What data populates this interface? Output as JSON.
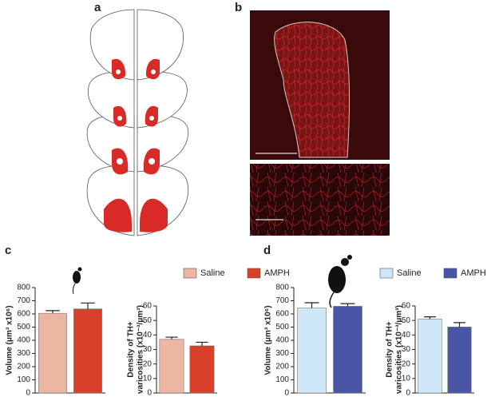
{
  "panels": [
    "a",
    "b",
    "c",
    "d"
  ],
  "legends": [
    [
      "Saline",
      "AMPH"
    ],
    [
      "Saline",
      "AMPH"
    ]
  ],
  "chart_data": [
    {
      "type": "bar",
      "ylabel": [
        "Volume (μm³ x10⁶)"
      ],
      "values": [
        605,
        638
      ],
      "errors": [
        20,
        45
      ],
      "colors": [
        "#ebb6a2",
        "#d8402a"
      ],
      "ylim": [
        0,
        800
      ],
      "yticks": [
        0,
        100,
        200,
        300,
        400,
        500,
        600,
        700,
        800
      ]
    },
    {
      "type": "bar",
      "ylabel": [
        "Density of TH+",
        "varicosities (x10⁻³/μm³)"
      ],
      "values": [
        37,
        32.5
      ],
      "errors": [
        1.5,
        2.5
      ],
      "colors": [
        "#ebb6a2",
        "#d8402a"
      ],
      "ylim": [
        0,
        60
      ],
      "yticks": [
        0,
        10,
        20,
        30,
        40,
        50,
        60
      ]
    },
    {
      "type": "bar",
      "ylabel": [
        "Volume (μm³ x10⁶)"
      ],
      "values": [
        645,
        658
      ],
      "errors": [
        40,
        20
      ],
      "colors": [
        "#cfe6f7",
        "#4a55a8"
      ],
      "ylim": [
        0,
        800
      ],
      "yticks": [
        0,
        100,
        200,
        300,
        400,
        500,
        600,
        700,
        800
      ]
    },
    {
      "type": "bar",
      "ylabel": [
        "Density of TH+",
        "varicosities (x10⁻³/μm³)"
      ],
      "values": [
        51,
        45.5
      ],
      "errors": [
        1.5,
        3
      ],
      "colors": [
        "#cfe6f7",
        "#4a55a8"
      ],
      "ylim": [
        0,
        60
      ],
      "yticks": [
        0,
        10,
        20,
        30,
        40,
        50,
        60
      ]
    }
  ]
}
